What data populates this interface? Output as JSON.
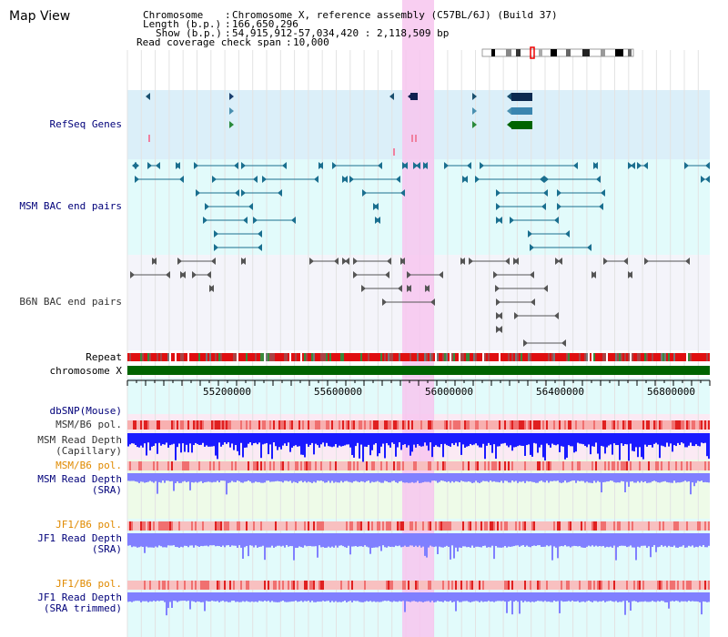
{
  "title": "Map View",
  "info": {
    "chromosome_label": "Chromosome",
    "chromosome_value": "Chromosome X, reference assembly (C57BL/6J) (Build 37)",
    "length_label": "Length (b.p.)",
    "length_value": "166,650,296",
    "show_label": "Show (b.p.)",
    "show_value": "54,915,912-57,034,420 : 2,118,509 bp",
    "coverage_label": "Read coverage check span",
    "coverage_value": "10,000"
  },
  "tracks": {
    "refseq": "RefSeq Genes",
    "msm_bac": "MSM BAC end pairs",
    "b6n_bac": "B6N BAC end pairs",
    "repeat": "Repeat",
    "chromosome": "chromosome X",
    "dbsnp": "dbSNP(Mouse)",
    "msm_pol": "MSM/B6 pol.",
    "msm_depth_cap_1": "MSM Read Depth",
    "msm_depth_cap_2": "(Capillary)",
    "msm_pol2": "MSM/B6 pol.",
    "msm_depth_sra_1": "MSM Read Depth",
    "msm_depth_sra_2": "(SRA)",
    "jf1_pol": "JF1/B6 pol.",
    "jf1_depth_1": "JF1 Read Depth",
    "jf1_depth_2": "(SRA)",
    "jf1_pol2": "JF1/B6 pol.",
    "jf1_trim_1": "JF1 Read Depth",
    "jf1_trim_2": "(SRA trimmed)"
  },
  "axis_ticks": [
    "55200000",
    "55600000",
    "56000000",
    "56400000",
    "56800000"
  ],
  "colors": {
    "highlight": "#f7c6ef",
    "refseq_bg": "#dbeff9",
    "bac_bg": "#e2fbfb",
    "b6n_bg": "#f4f4fa",
    "chromosome_bar": "#006400",
    "depth_blue": "#1a1aff",
    "depth_violet": "#8080ff"
  }
}
